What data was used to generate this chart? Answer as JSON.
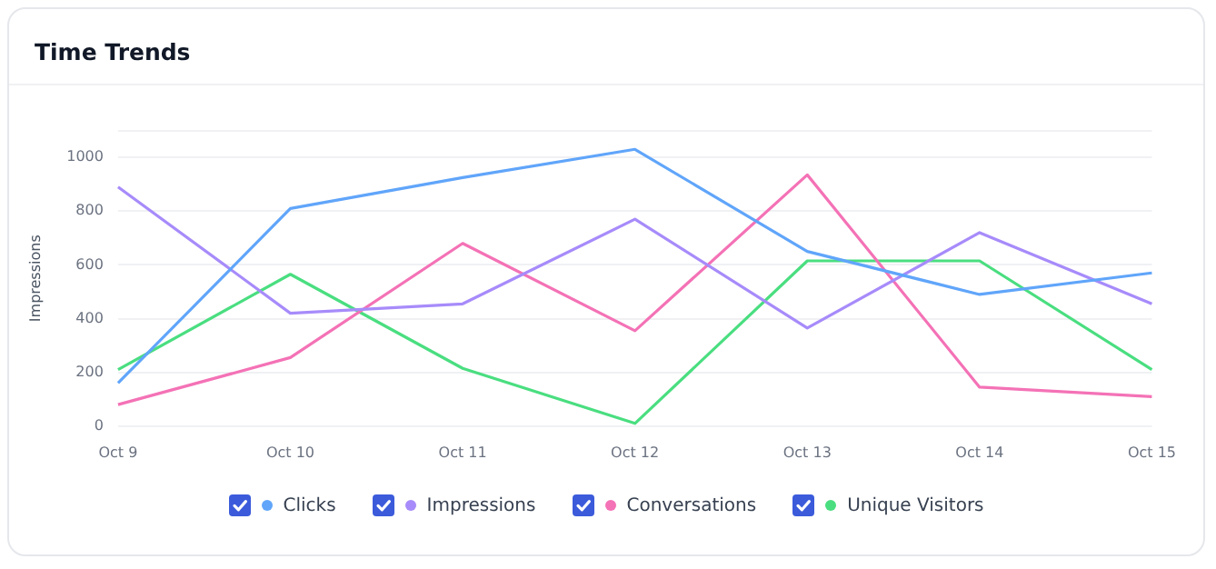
{
  "chart_data": {
    "type": "line",
    "title": "Time Trends",
    "ylabel": "Impressions",
    "categories": [
      "Oct 9",
      "Oct 10",
      "Oct 11",
      "Oct 12",
      "Oct 13",
      "Oct 14",
      "Oct 15"
    ],
    "series": [
      {
        "name": "Clicks",
        "color": "#60a5fa",
        "values": [
          160,
          810,
          925,
          1030,
          650,
          490,
          570
        ]
      },
      {
        "name": "Impressions",
        "color": "#a78bfa",
        "values": [
          890,
          420,
          455,
          770,
          365,
          720,
          455
        ]
      },
      {
        "name": "Conversations",
        "color": "#f472b6",
        "values": [
          80,
          255,
          680,
          355,
          935,
          145,
          110
        ]
      },
      {
        "name": "Unique Visitors",
        "color": "#4ade80",
        "values": [
          210,
          565,
          215,
          10,
          615,
          615,
          210
        ]
      }
    ],
    "ylim": [
      0,
      1100
    ],
    "yticks": [
      0,
      200,
      400,
      600,
      800,
      1000,
      {
        "value": 1100,
        "label": null
      }
    ],
    "grid": "y",
    "legend": "bottom",
    "marker": "none",
    "line_style": "solid"
  }
}
